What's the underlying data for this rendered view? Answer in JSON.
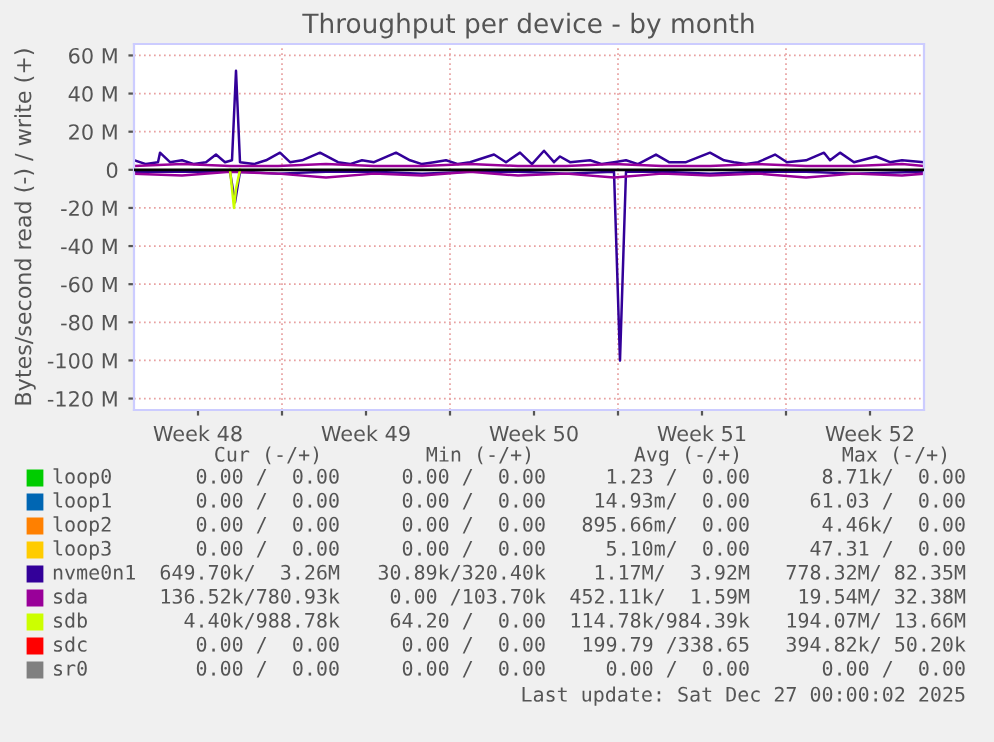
{
  "chart_data": {
    "type": "line",
    "title": "Throughput per device - by month",
    "ylabel": "Bytes/second read (-) / write (+)",
    "xlim": [
      "2025-11-24T20:00",
      "2025-12-27T18:00"
    ],
    "xticks": [
      {
        "value": "2025-11-27T12:00",
        "label": "Week 48"
      },
      {
        "value": "2025-12-01T00:00",
        "label": null
      },
      {
        "value": "2025-12-04T12:00",
        "label": "Week 49"
      },
      {
        "value": "2025-12-08T00:00",
        "label": null
      },
      {
        "value": "2025-12-11T12:00",
        "label": "Week 50"
      },
      {
        "value": "2025-12-15T00:00",
        "label": null
      },
      {
        "value": "2025-12-18T12:00",
        "label": "Week 51"
      },
      {
        "value": "2025-12-22T00:00",
        "label": null
      },
      {
        "value": "2025-12-25T12:00",
        "label": "Week 52"
      }
    ],
    "ylim": [
      -126,
      66
    ],
    "yticks": [
      {
        "value": -120,
        "label": "-120 M"
      },
      {
        "value": -100,
        "label": "-100 M"
      },
      {
        "value": -80,
        "label": "-80 M"
      },
      {
        "value": -60,
        "label": "-60 M"
      },
      {
        "value": -40,
        "label": "-40 M"
      },
      {
        "value": -20,
        "label": "-20 M"
      },
      {
        "value": 0,
        "label": "0"
      },
      {
        "value": 20,
        "label": "20 M"
      },
      {
        "value": 40,
        "label": "40 M"
      },
      {
        "value": 60,
        "label": "60 M"
      }
    ],
    "grid": true,
    "legend": "bottom",
    "marker": "none",
    "line_style": "solid",
    "ref_lines": [
      {
        "axis": "y",
        "value": 0,
        "color": "#000000"
      }
    ],
    "series": [
      {
        "name": "loop0",
        "color": "#00cc00"
      },
      {
        "name": "loop1",
        "color": "#0066b3"
      },
      {
        "name": "loop2",
        "color": "#ff8000"
      },
      {
        "name": "loop3",
        "color": "#ffcc00"
      },
      {
        "name": "nvme0n1",
        "color": "#330099",
        "x": [
          "2025-11-24T20:00",
          "2025-11-25T08:00",
          "2025-11-25T20:00",
          "2025-11-25T22:00",
          "2025-11-26T08:00",
          "2025-11-26T20:00",
          "2025-11-27T08:00",
          "2025-11-27T20:00",
          "2025-11-28T06:00",
          "2025-11-28T15:00",
          "2025-11-28T22:00",
          "2025-11-29T02:00",
          "2025-11-29T06:00",
          "2025-11-29T20:00",
          "2025-11-30T08:00",
          "2025-11-30T22:00",
          "2025-12-01T08:00",
          "2025-12-01T20:00",
          "2025-12-02T14:00",
          "2025-12-03T08:00",
          "2025-12-03T20:00",
          "2025-12-04T08:00",
          "2025-12-04T20:00",
          "2025-12-05T18:00",
          "2025-12-06T08:00",
          "2025-12-06T20:00",
          "2025-12-07T08:00",
          "2025-12-07T20:00",
          "2025-12-08T08:00",
          "2025-12-08T20:00",
          "2025-12-09T20:00",
          "2025-12-10T08:00",
          "2025-12-10T22:00",
          "2025-12-11T10:00",
          "2025-12-11T22:00",
          "2025-12-12T08:00",
          "2025-12-12T14:00",
          "2025-12-13T00:00",
          "2025-12-13T20:00",
          "2025-12-14T08:00",
          "2025-12-14T20:00",
          "2025-12-15T08:00",
          "2025-12-15T20:00",
          "2025-12-16T14:00",
          "2025-12-17T03:00",
          "2025-12-17T20:00",
          "2025-12-18T20:00",
          "2025-12-19T10:00",
          "2025-12-19T20:00",
          "2025-12-20T08:00",
          "2025-12-20T20:00",
          "2025-12-21T13:00",
          "2025-12-22T01:00",
          "2025-12-22T20:00",
          "2025-12-23T14:00",
          "2025-12-23T20:00",
          "2025-12-24T06:00",
          "2025-12-24T20:00",
          "2025-12-25T18:00",
          "2025-12-26T08:00",
          "2025-12-26T20:00",
          "2025-12-27T18:00"
        ],
        "values": [
          5,
          3,
          4,
          9,
          4,
          5,
          3,
          4,
          8,
          4,
          5,
          52,
          4,
          3,
          5,
          9,
          4,
          5,
          9,
          4,
          3,
          5,
          4,
          9,
          5,
          3,
          4,
          5,
          3,
          4,
          8,
          4,
          9,
          3,
          10,
          4,
          7,
          4,
          5,
          3,
          4,
          5,
          3,
          8,
          4,
          4,
          9,
          5,
          4,
          3,
          4,
          8,
          4,
          5,
          9,
          5,
          9,
          4,
          7,
          4,
          5,
          4
        ]
      },
      {
        "name": "sda",
        "color": "#990099",
        "x": [
          "2025-11-24T20:00",
          "2025-11-26T20:00",
          "2025-11-28T20:00",
          "2025-11-30T20:00",
          "2025-12-02T20:00",
          "2025-12-04T20:00",
          "2025-12-06T20:00",
          "2025-12-08T20:00",
          "2025-12-10T20:00",
          "2025-12-12T20:00",
          "2025-12-14T20:00",
          "2025-12-16T20:00",
          "2025-12-18T20:00",
          "2025-12-20T20:00",
          "2025-12-22T20:00",
          "2025-12-24T20:00",
          "2025-12-26T20:00",
          "2025-12-27T18:00"
        ],
        "values": [
          2,
          3,
          2,
          2,
          3,
          2,
          2,
          3,
          2,
          2,
          3,
          2,
          2,
          3,
          2,
          2,
          3,
          2
        ]
      },
      {
        "name": "sdb",
        "color": "#ccff00"
      },
      {
        "name": "sdc",
        "color": "#ff0000"
      },
      {
        "name": "sr0",
        "color": "#808080"
      },
      {
        "color": "#330099",
        "x": [
          "2025-11-24T20:00",
          "2025-11-26T20:00",
          "2025-11-28T20:00",
          "2025-11-29T01:00",
          "2025-11-29T06:00",
          "2025-11-30T20:00",
          "2025-12-02T20:00",
          "2025-12-04T20:00",
          "2025-12-06T20:00",
          "2025-12-08T20:00",
          "2025-12-10T20:00",
          "2025-12-12T20:00",
          "2025-12-14T20:00",
          "2025-12-15T02:00",
          "2025-12-15T08:00",
          "2025-12-16T20:00",
          "2025-12-18T20:00",
          "2025-12-20T20:00",
          "2025-12-22T20:00",
          "2025-12-24T20:00",
          "2025-12-27T18:00"
        ],
        "values": [
          -1,
          -1,
          -1,
          -17,
          -1,
          -2,
          -1,
          -1,
          -2,
          -1,
          -1,
          -2,
          -1,
          -100,
          -1,
          -1,
          -2,
          -1,
          -1,
          -2,
          -1
        ]
      },
      {
        "color": "#990099",
        "x": [
          "2025-11-24T20:00",
          "2025-11-26T20:00",
          "2025-11-28T20:00",
          "2025-11-30T20:00",
          "2025-12-02T20:00",
          "2025-12-04T20:00",
          "2025-12-06T20:00",
          "2025-12-08T20:00",
          "2025-12-10T20:00",
          "2025-12-12T20:00",
          "2025-12-14T20:00",
          "2025-12-16T20:00",
          "2025-12-18T20:00",
          "2025-12-20T20:00",
          "2025-12-22T20:00",
          "2025-12-24T20:00",
          "2025-12-26T20:00",
          "2025-12-27T18:00"
        ],
        "values": [
          -2,
          -3,
          -1,
          -2,
          -4,
          -2,
          -3,
          -1,
          -3,
          -2,
          -4,
          -2,
          -3,
          -2,
          -4,
          -2,
          -3,
          -2
        ]
      },
      {
        "color": "#ccff00",
        "x": [
          "2025-11-28T20:00",
          "2025-11-29T00:00",
          "2025-11-29T02:00",
          "2025-11-29T06:00"
        ],
        "values": [
          0,
          -20,
          -10,
          0
        ]
      }
    ],
    "annotations": [
      "Cur (-/+)",
      "Min (-/+)",
      "Avg (-/+)",
      "Max (-/+)",
      "0.00 /  0.00",
      "0.00 /  0.00",
      "1.23 /  0.00",
      "8.71k/  0.00",
      "0.00 /  0.00",
      "0.00 /  0.00",
      "14.93m/  0.00",
      "61.03 /  0.00",
      "0.00 /  0.00",
      "0.00 /  0.00",
      "895.66m/  0.00",
      "4.46k/  0.00",
      "0.00 /  0.00",
      "0.00 /  0.00",
      "5.10m/  0.00",
      "47.31 /  0.00",
      "649.70k/  3.26M",
      "30.89k/320.40k",
      "1.17M/  3.92M",
      "778.32M/ 82.35M",
      "136.52k/780.93k",
      "0.00 /103.70k",
      "452.11k/  1.59M",
      "19.54M/ 32.38M",
      "4.40k/988.78k",
      "64.20 /  0.00",
      "114.78k/984.39k",
      "194.07M/ 13.66M",
      "0.00 /  0.00",
      "0.00 /  0.00",
      "199.79 /338.65",
      "394.82k/ 50.20k",
      "0.00 /  0.00",
      "0.00 /  0.00",
      "0.00 /  0.00",
      "0.00 /  0.00",
      "Last update: Sat Dec 27 00:00:02 2025"
    ]
  }
}
